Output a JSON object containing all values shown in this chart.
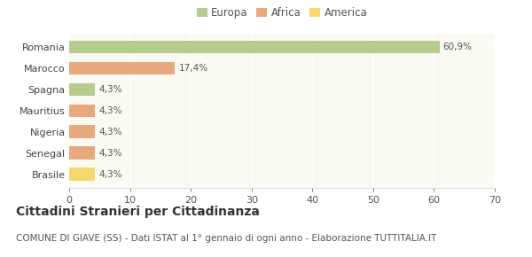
{
  "categories": [
    "Romania",
    "Marocco",
    "Spagna",
    "Mauritius",
    "Nigeria",
    "Senegal",
    "Brasile"
  ],
  "values": [
    60.9,
    17.4,
    4.3,
    4.3,
    4.3,
    4.3,
    4.3
  ],
  "colors": [
    "#b5cc8e",
    "#e8a97e",
    "#b5cc8e",
    "#e8a97e",
    "#e8a97e",
    "#e8a97e",
    "#f5d76e"
  ],
  "labels": [
    "60,9%",
    "17,4%",
    "4,3%",
    "4,3%",
    "4,3%",
    "4,3%",
    "4,3%"
  ],
  "legend": [
    {
      "label": "Europa",
      "color": "#b5cc8e"
    },
    {
      "label": "Africa",
      "color": "#e8a97e"
    },
    {
      "label": "America",
      "color": "#f5d76e"
    }
  ],
  "xlim": [
    0,
    70
  ],
  "xticks": [
    0,
    10,
    20,
    30,
    40,
    50,
    60,
    70
  ],
  "title": "Cittadini Stranieri per Cittadinanza",
  "subtitle": "COMUNE DI GIAVE (SS) - Dati ISTAT al 1° gennaio di ogni anno - Elaborazione TUTTITALIA.IT",
  "background_color": "#ffffff",
  "plot_bg_color": "#fafaf2",
  "grid_color": "#ffffff",
  "bar_height": 0.6,
  "title_fontsize": 10,
  "subtitle_fontsize": 7.5,
  "label_fontsize": 7.5,
  "ytick_fontsize": 8,
  "xtick_fontsize": 8
}
